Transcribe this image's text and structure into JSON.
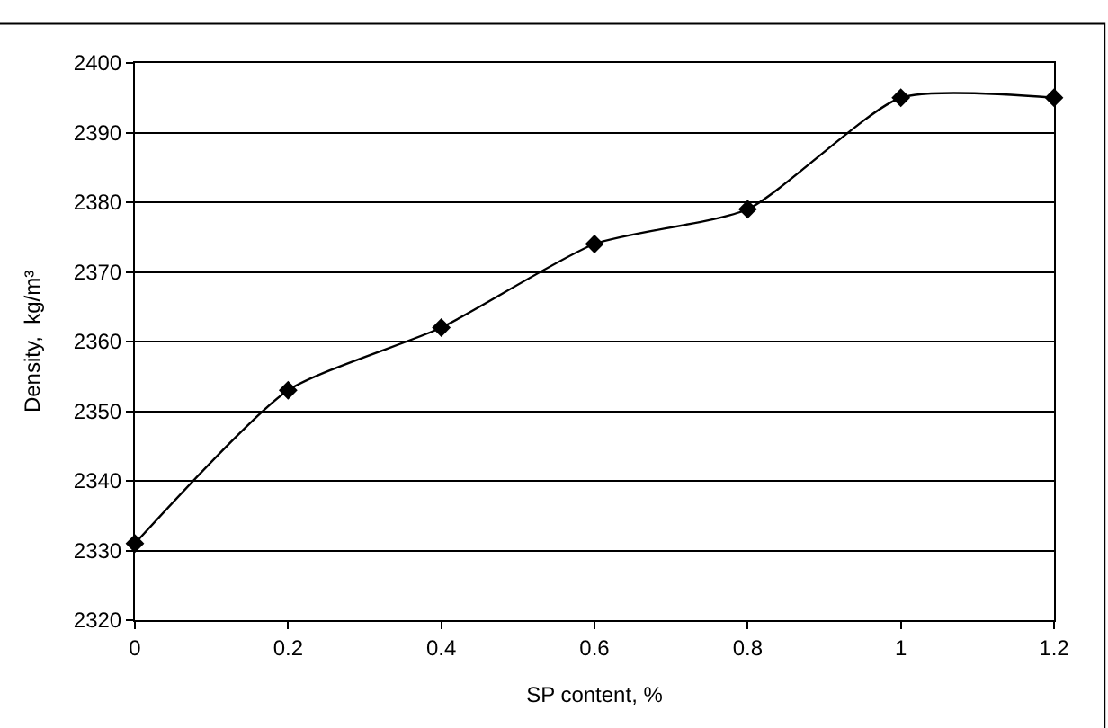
{
  "chart_data": {
    "type": "line",
    "xlabel": "SP content, %",
    "ylabel": "Density,  kg/m³",
    "x": [
      0,
      0.2,
      0.4,
      0.6,
      0.8,
      1,
      1.2
    ],
    "series": [
      {
        "color": "#000000",
        "values": [
          2331,
          2353,
          2362,
          2374,
          2379,
          2395,
          2395
        ]
      }
    ],
    "xlim": [
      0,
      1.2
    ],
    "xticks": [
      0,
      0.2,
      0.4,
      0.6,
      0.8,
      1,
      1.2
    ],
    "ylim": [
      2320,
      2400
    ],
    "yticks": [
      2320,
      2330,
      2340,
      2350,
      2360,
      2370,
      2380,
      2390,
      2400
    ],
    "grid": "y",
    "marker": "diamond",
    "line_style": "solid",
    "legend": false
  }
}
